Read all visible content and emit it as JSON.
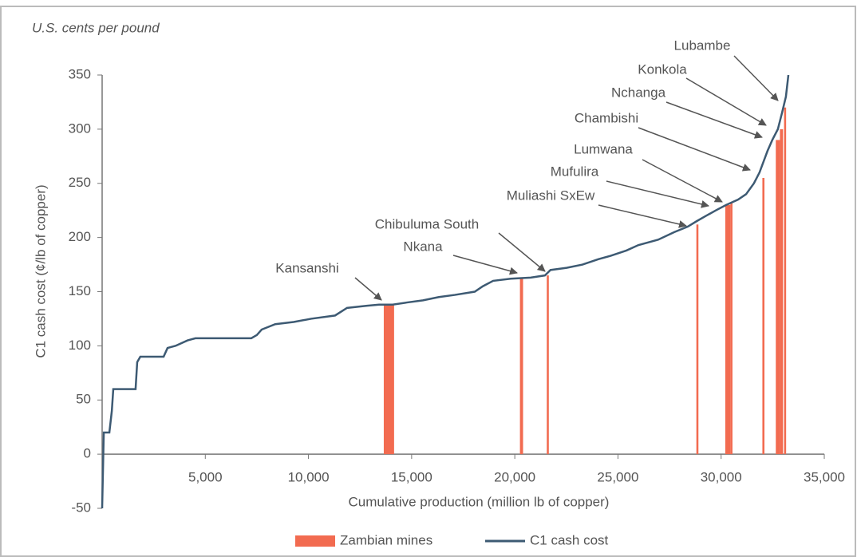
{
  "chart_data": {
    "type": "cost-curve",
    "title": "U.S. cents per pound",
    "y_label": "C1 cash cost (¢/lb of copper)",
    "x_label": "Cumulative production (million lb of copper)",
    "xlim": [
      0,
      35000
    ],
    "ylim": [
      -50,
      350
    ],
    "xticks": [
      {
        "value": 5000,
        "label": "5,000"
      },
      {
        "value": 10000,
        "label": "10,000"
      },
      {
        "value": 15000,
        "label": "15,000"
      },
      {
        "value": 20000,
        "label": "20,000"
      },
      {
        "value": 25000,
        "label": "25,000"
      },
      {
        "value": 30000,
        "label": "30,000"
      },
      {
        "value": 35000,
        "label": "35,000"
      }
    ],
    "yticks": [
      -50,
      0,
      50,
      100,
      150,
      200,
      250,
      300,
      350
    ],
    "series": [
      {
        "name": "Zambian mines",
        "type": "bar",
        "color": "#f26b50",
        "mines": [
          "Kansanshi",
          "Nkana",
          "Chibuluma South",
          "Muliashi SxEw",
          "Mufulira",
          "Lumwana",
          "Chambishi",
          "Nchanga",
          "Konkola",
          "Lubambe"
        ],
        "x_start": [
          13650,
          20250,
          21550,
          28800,
          30200,
          30450,
          32000,
          32650,
          32850,
          33050
        ],
        "x_end": [
          14150,
          20400,
          21650,
          28900,
          30450,
          30550,
          32100,
          32850,
          33000,
          33150
        ],
        "values": [
          138,
          163,
          165,
          212,
          230,
          232,
          255,
          290,
          300,
          320
        ]
      },
      {
        "name": "C1 cash cost",
        "type": "line",
        "color": "#3d5a73",
        "x": [
          0,
          80,
          350,
          470,
          540,
          1620,
          1700,
          1850,
          2980,
          3170,
          3560,
          4140,
          4520,
          7230,
          7500,
          7730,
          8390,
          9280,
          10130,
          11290,
          11870,
          12840,
          13420,
          14080,
          14770,
          15550,
          16320,
          17090,
          18060,
          18450,
          18950,
          19800,
          20770,
          21460,
          21730,
          22510,
          23280,
          24050,
          24630,
          25410,
          25990,
          26950,
          27730,
          28380,
          28810,
          29270,
          29740,
          30240,
          30820,
          31210,
          31590,
          31860,
          32250,
          32480,
          32750,
          32950,
          33140,
          33260
        ],
        "values": [
          -50,
          20,
          20,
          40,
          60,
          60,
          85,
          90,
          90,
          98,
          100,
          105,
          107,
          107,
          110,
          115,
          120,
          122,
          125,
          128,
          135,
          137,
          138,
          138,
          140,
          142,
          145,
          147,
          150,
          155,
          160,
          162,
          163,
          165,
          170,
          172,
          175,
          180,
          183,
          188,
          193,
          198,
          205,
          210,
          215,
          220,
          225,
          230,
          235,
          240,
          250,
          260,
          280,
          290,
          300,
          315,
          330,
          350
        ]
      }
    ]
  }
}
